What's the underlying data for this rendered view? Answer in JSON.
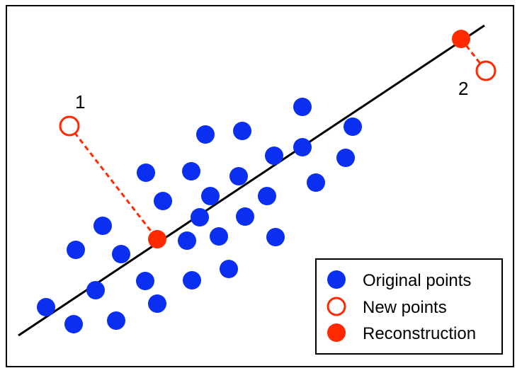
{
  "colors": {
    "original": "#0a2ff0",
    "new_stroke": "#ff2a00",
    "reconstruction": "#ff2a00",
    "projection": "#ff2a00",
    "axis_line": "#000000",
    "frame": "#000000"
  },
  "annotations": {
    "point1": "1",
    "point2": "2"
  },
  "legend": {
    "items": [
      {
        "label": "Original points",
        "marker": "filled-blue-circle"
      },
      {
        "label": "New points",
        "marker": "hollow-red-circle"
      },
      {
        "label": "Reconstruction",
        "marker": "filled-red-circle"
      }
    ]
  }
}
